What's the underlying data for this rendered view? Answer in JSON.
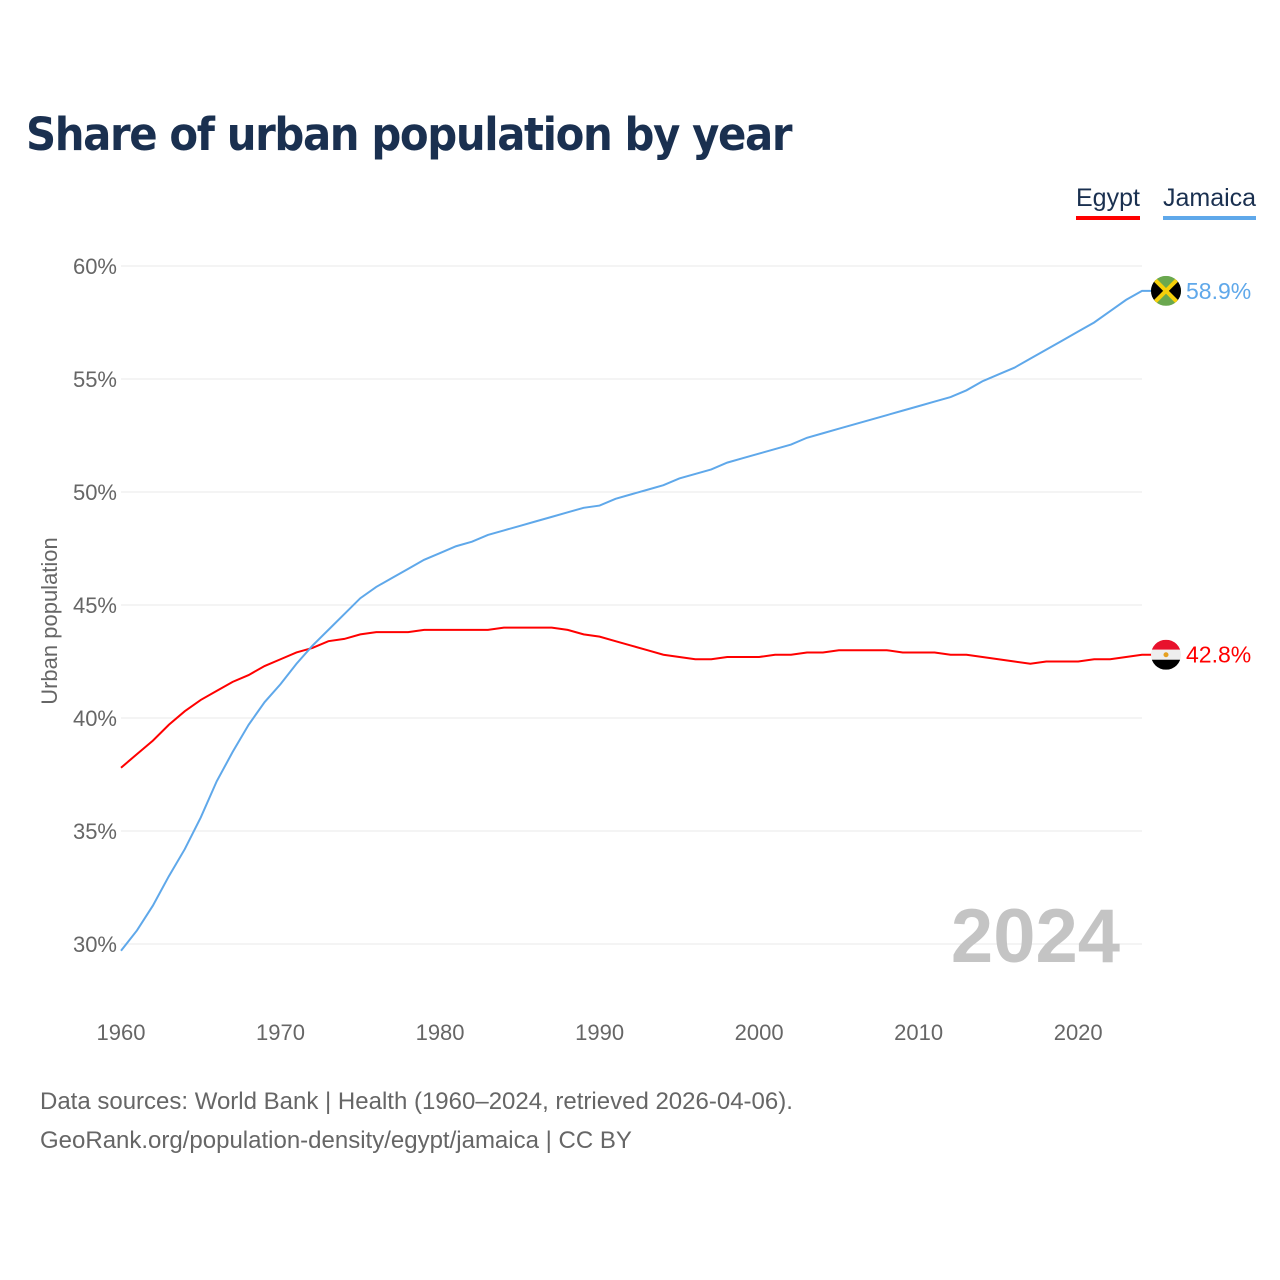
{
  "title": "Share of urban population by year",
  "chart_data": {
    "type": "line",
    "title": "Share of urban population by year",
    "ylabel": "Urban population",
    "xlabel": "",
    "ylim": [
      30,
      60
    ],
    "xlim": [
      1960,
      2024
    ],
    "yticks": [
      "30%",
      "35%",
      "40%",
      "45%",
      "50%",
      "55%",
      "60%"
    ],
    "ytick_values": [
      30,
      35,
      40,
      45,
      50,
      55,
      60
    ],
    "xticks": [
      "1960",
      "1970",
      "1980",
      "1990",
      "2000",
      "2010",
      "2020"
    ],
    "xtick_values": [
      1960,
      1970,
      1980,
      1990,
      2000,
      2010,
      2020
    ],
    "grid": true,
    "legend_position": "top-right",
    "year_watermark": "2024",
    "x_start": 1960,
    "series": [
      {
        "name": "Egypt",
        "color": "#ff0000",
        "end_label": "42.8%",
        "values": [
          37.8,
          38.4,
          39.0,
          39.7,
          40.3,
          40.8,
          41.2,
          41.6,
          41.9,
          42.3,
          42.6,
          42.9,
          43.1,
          43.4,
          43.5,
          43.7,
          43.8,
          43.8,
          43.8,
          43.9,
          43.9,
          43.9,
          43.9,
          43.9,
          44.0,
          44.0,
          44.0,
          44.0,
          43.9,
          43.7,
          43.6,
          43.4,
          43.2,
          43.0,
          42.8,
          42.7,
          42.6,
          42.6,
          42.7,
          42.7,
          42.7,
          42.8,
          42.8,
          42.9,
          42.9,
          43.0,
          43.0,
          43.0,
          43.0,
          42.9,
          42.9,
          42.9,
          42.8,
          42.8,
          42.7,
          42.6,
          42.5,
          42.4,
          42.5,
          42.5,
          42.5,
          42.6,
          42.6,
          42.7,
          42.8
        ]
      },
      {
        "name": "Jamaica",
        "color": "#5fa8ea",
        "end_label": "58.9%",
        "values": [
          29.7,
          30.6,
          31.7,
          33.0,
          34.2,
          35.6,
          37.2,
          38.5,
          39.7,
          40.7,
          41.5,
          42.4,
          43.2,
          43.9,
          44.6,
          45.3,
          45.8,
          46.2,
          46.6,
          47.0,
          47.3,
          47.6,
          47.8,
          48.1,
          48.3,
          48.5,
          48.7,
          48.9,
          49.1,
          49.3,
          49.4,
          49.7,
          49.9,
          50.1,
          50.3,
          50.6,
          50.8,
          51.0,
          51.3,
          51.5,
          51.7,
          51.9,
          52.1,
          52.4,
          52.6,
          52.8,
          53.0,
          53.2,
          53.4,
          53.6,
          53.8,
          54.0,
          54.2,
          54.5,
          54.9,
          55.2,
          55.5,
          55.9,
          56.3,
          56.7,
          57.1,
          57.5,
          58.0,
          58.5,
          58.9
        ]
      }
    ]
  },
  "footer": {
    "line1": "Data sources: World Bank | Health (1960–2024, retrieved 2026-04-06).",
    "line2": "GeoRank.org/population-density/egypt/jamaica | CC BY"
  }
}
